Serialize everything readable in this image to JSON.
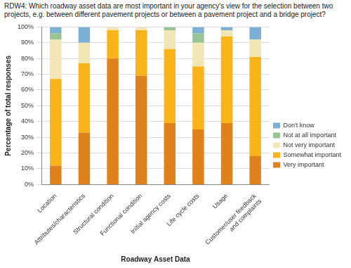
{
  "chart_data": {
    "type": "bar",
    "title": "RDW4: Which roadway asset data are most important in your agency's view for the selection between two projects, e.g. between different pavement projects or between a pavement project and a bridge project?",
    "x_label": "Roadway Asset Data",
    "y_label": "Percentage of total responses",
    "categories": [
      "Location",
      "Attributes/characteristics",
      "Structural condition",
      "Functional condition",
      "Initial agency costs",
      "Life cycle costs",
      "Usage",
      "Customer/user feedback and complaints"
    ],
    "series": [
      {
        "name": "Very important",
        "color": "#e0821c",
        "values": [
          12,
          33,
          80,
          69,
          39,
          35,
          39,
          18
        ]
      },
      {
        "name": "Somewhat important",
        "color": "#f8b418",
        "values": [
          55,
          44,
          18,
          29,
          47,
          40,
          55,
          63
        ]
      },
      {
        "name": "Not very important",
        "color": "#f2e6b4",
        "values": [
          25,
          13,
          2,
          2,
          12,
          15,
          4,
          11
        ]
      },
      {
        "name": "Not at all important",
        "color": "#99c497",
        "values": [
          4,
          0,
          0,
          0,
          2,
          6,
          0,
          0
        ]
      },
      {
        "name": "Don't know",
        "color": "#7bafd4",
        "values": [
          4,
          10,
          0,
          0,
          0,
          4,
          2,
          8
        ]
      }
    ],
    "stacked": true,
    "grid": true,
    "legend": "right",
    "ylim": [
      0,
      100
    ],
    "yticks": [
      {
        "value": 0,
        "label": "0%"
      },
      {
        "value": 10,
        "label": "10%"
      },
      {
        "value": 20,
        "label": "20%"
      },
      {
        "value": 30,
        "label": "30%"
      },
      {
        "value": 40,
        "label": "40%"
      },
      {
        "value": 50,
        "label": "50%"
      },
      {
        "value": 60,
        "label": "60%"
      },
      {
        "value": 70,
        "label": "70%"
      },
      {
        "value": 80,
        "label": "80%"
      },
      {
        "value": 90,
        "label": "90%"
      },
      {
        "value": 100,
        "label": "100%"
      }
    ]
  }
}
